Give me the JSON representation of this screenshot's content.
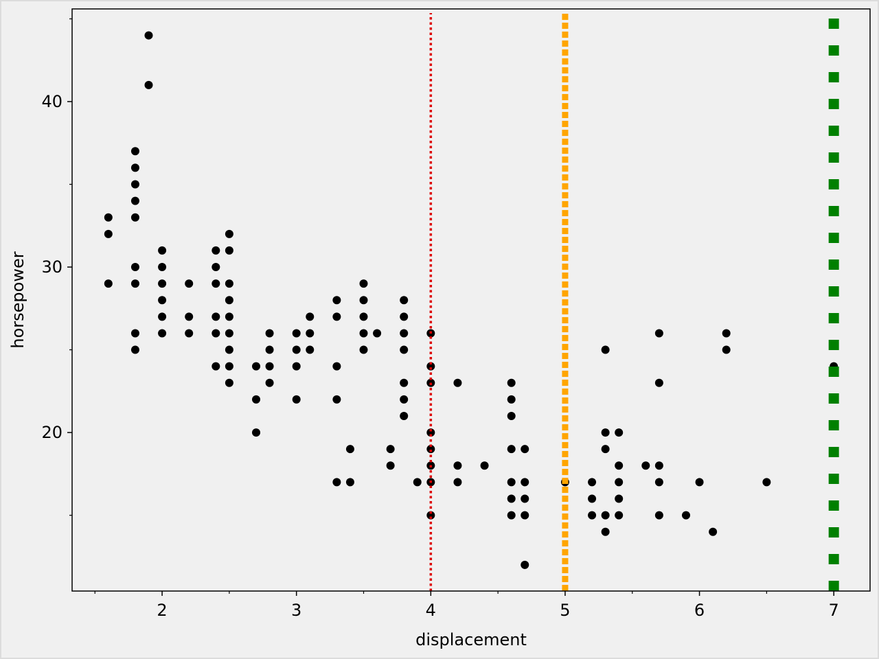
{
  "chart_data": {
    "type": "scatter",
    "xlabel": "displacement",
    "ylabel": "horsepower",
    "color": "#000000",
    "x": [
      1.6,
      1.6,
      1.6,
      1.8,
      1.8,
      1.8,
      1.8,
      1.8,
      1.8,
      1.8,
      1.8,
      1.8,
      1.9,
      1.9,
      2.0,
      2.0,
      2.0,
      2.0,
      2.0,
      2.0,
      2.2,
      2.2,
      2.2,
      2.4,
      2.4,
      2.4,
      2.4,
      2.4,
      2.4,
      2.5,
      2.5,
      2.5,
      2.5,
      2.5,
      2.5,
      2.5,
      2.5,
      2.5,
      2.7,
      2.7,
      2.7,
      2.8,
      2.8,
      2.8,
      2.8,
      3.0,
      3.0,
      3.0,
      3.0,
      3.1,
      3.1,
      3.1,
      3.3,
      3.3,
      3.3,
      3.3,
      3.3,
      3.4,
      3.4,
      3.5,
      3.5,
      3.5,
      3.5,
      3.5,
      3.6,
      3.7,
      3.7,
      3.8,
      3.8,
      3.8,
      3.8,
      3.8,
      3.8,
      3.8,
      3.9,
      4.0,
      4.0,
      4.0,
      4.0,
      4.0,
      4.0,
      4.0,
      4.0,
      4.2,
      4.2,
      4.2,
      4.4,
      4.6,
      4.6,
      4.6,
      4.6,
      4.6,
      4.6,
      4.6,
      4.7,
      4.7,
      4.7,
      4.7,
      4.7,
      5.0,
      5.2,
      5.2,
      5.2,
      5.3,
      5.3,
      5.3,
      5.3,
      5.3,
      5.4,
      5.4,
      5.4,
      5.4,
      5.4,
      5.6,
      5.7,
      5.7,
      5.7,
      5.7,
      5.7,
      5.9,
      6.0,
      6.1,
      6.2,
      6.2,
      6.5,
      7.0
    ],
    "values": [
      33,
      32,
      29,
      37,
      36,
      35,
      34,
      33,
      30,
      29,
      26,
      25,
      44,
      41,
      31,
      30,
      29,
      28,
      27,
      26,
      29,
      27,
      26,
      31,
      30,
      29,
      27,
      26,
      24,
      32,
      31,
      29,
      28,
      27,
      26,
      25,
      24,
      23,
      24,
      22,
      20,
      26,
      25,
      24,
      23,
      26,
      25,
      24,
      22,
      27,
      26,
      25,
      28,
      27,
      24,
      22,
      17,
      19,
      17,
      29,
      28,
      27,
      26,
      25,
      26,
      19,
      18,
      28,
      27,
      26,
      25,
      23,
      22,
      21,
      17,
      26,
      24,
      23,
      20,
      19,
      18,
      17,
      15,
      23,
      18,
      17,
      18,
      23,
      22,
      21,
      19,
      17,
      16,
      15,
      19,
      17,
      16,
      15,
      12,
      17,
      17,
      16,
      15,
      25,
      20,
      19,
      15,
      14,
      20,
      18,
      17,
      16,
      15,
      18,
      26,
      23,
      18,
      17,
      15,
      15,
      17,
      14,
      26,
      25,
      17,
      24
    ],
    "xlim": [
      1.33,
      7.27
    ],
    "ylim": [
      10.42,
      45.6
    ],
    "xticks": [
      2,
      3,
      4,
      5,
      6,
      7
    ],
    "yticks": [
      20,
      30,
      40
    ],
    "xminorticks": [
      1.5,
      2.5,
      3.5,
      4.5,
      5.5,
      6.5
    ],
    "yminorticks": [
      15,
      25,
      35,
      45
    ],
    "grid": false,
    "vlines": [
      {
        "x": 4,
        "color": "#dd0000",
        "style": "dotted"
      },
      {
        "x": 5,
        "color": "#ffa500",
        "style": "dotted-thick"
      },
      {
        "x": 7,
        "color": "#008000",
        "style": "square-dashed"
      }
    ]
  }
}
